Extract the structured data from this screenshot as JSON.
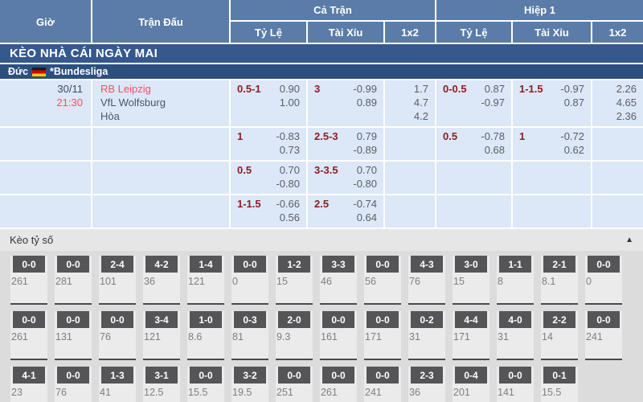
{
  "header": {
    "col_time": "Giờ",
    "col_match": "Trận Đấu",
    "group_full": "Cả Trận",
    "group_half": "Hiệp 1",
    "sub_odds": "Tỷ Lệ",
    "sub_ou": "Tài Xỉu",
    "sub_1x2": "1x2"
  },
  "section_title": "KÈO NHÀ CÁI NGÀY MAI",
  "league": {
    "country": "Đức",
    "name": "*Bundesliga",
    "flag": "germany-flag"
  },
  "odds_rows": [
    {
      "date": "30/11",
      "time": "21:30",
      "teams": [
        "RB Leipzig",
        "VfL Wolfsburg",
        "Hòa"
      ],
      "cells": [
        {
          "line": "0.5-1",
          "odds": [
            "0.90",
            "1.00"
          ]
        },
        {
          "line": "3",
          "odds": [
            "-0.99",
            "0.89"
          ]
        },
        {
          "x12": [
            "1.7",
            "4.7",
            "4.2"
          ]
        },
        {
          "line": "0-0.5",
          "odds": [
            "0.87",
            "-0.97"
          ]
        },
        {
          "line": "1-1.5",
          "odds": [
            "-0.97",
            "0.87"
          ]
        },
        {
          "x12": [
            "2.26",
            "4.65",
            "2.36"
          ]
        }
      ]
    },
    {
      "cells": [
        {
          "line": "1",
          "odds": [
            "-0.83",
            "0.73"
          ]
        },
        {
          "line": "2.5-3",
          "odds": [
            "0.79",
            "-0.89"
          ]
        },
        null,
        {
          "line": "0.5",
          "odds": [
            "-0.78",
            "0.68"
          ]
        },
        {
          "line": "1",
          "odds": [
            "-0.72",
            "0.62"
          ]
        },
        null
      ]
    },
    {
      "cells": [
        {
          "line": "0.5",
          "odds": [
            "0.70",
            "-0.80"
          ]
        },
        {
          "line": "3-3.5",
          "odds": [
            "0.70",
            "-0.80"
          ]
        },
        null,
        null,
        null,
        null
      ]
    },
    {
      "cells": [
        {
          "line": "1-1.5",
          "odds": [
            "-0.66",
            "0.56"
          ]
        },
        {
          "line": "2.5",
          "odds": [
            "-0.74",
            "0.64"
          ]
        },
        null,
        null,
        null,
        null
      ]
    }
  ],
  "score_section": {
    "title": "Kèo tỷ số",
    "collapse_icon": "▲",
    "rows": [
      [
        {
          "score": "0-0",
          "value": "261"
        },
        {
          "score": "0-0",
          "value": "281"
        },
        {
          "score": "2-4",
          "value": "101"
        },
        {
          "score": "4-2",
          "value": "36"
        },
        {
          "score": "1-4",
          "value": "121"
        },
        {
          "score": "0-0",
          "value": "0"
        },
        {
          "score": "1-2",
          "value": "15"
        },
        {
          "score": "3-3",
          "value": "46"
        },
        {
          "score": "0-0",
          "value": "56"
        },
        {
          "score": "4-3",
          "value": "76"
        },
        {
          "score": "3-0",
          "value": "15"
        },
        {
          "score": "1-1",
          "value": "8"
        },
        {
          "score": "2-1",
          "value": "8.1"
        },
        {
          "score": "0-0",
          "value": "0"
        }
      ],
      [
        {
          "score": "0-0",
          "value": "261"
        },
        {
          "score": "0-0",
          "value": "131"
        },
        {
          "score": "0-0",
          "value": "76"
        },
        {
          "score": "3-4",
          "value": "121"
        },
        {
          "score": "1-0",
          "value": "8.6"
        },
        {
          "score": "0-3",
          "value": "81"
        },
        {
          "score": "2-0",
          "value": "9.3"
        },
        {
          "score": "0-0",
          "value": "161"
        },
        {
          "score": "0-0",
          "value": "171"
        },
        {
          "score": "0-2",
          "value": "31"
        },
        {
          "score": "4-4",
          "value": "171"
        },
        {
          "score": "4-0",
          "value": "31"
        },
        {
          "score": "2-2",
          "value": "14"
        },
        {
          "score": "0-0",
          "value": "241"
        }
      ],
      [
        {
          "score": "4-1",
          "value": "23"
        },
        {
          "score": "0-0",
          "value": "76"
        },
        {
          "score": "1-3",
          "value": "41"
        },
        {
          "score": "3-1",
          "value": "12.5"
        },
        {
          "score": "0-0",
          "value": "15.5"
        },
        {
          "score": "3-2",
          "value": "19.5"
        },
        {
          "score": "0-0",
          "value": "251"
        },
        {
          "score": "0-0",
          "value": "261"
        },
        {
          "score": "0-0",
          "value": "241"
        },
        {
          "score": "2-3",
          "value": "36"
        },
        {
          "score": "0-4",
          "value": "201"
        },
        {
          "score": "0-0",
          "value": "141"
        },
        {
          "score": "0-1",
          "value": "15.5"
        }
      ]
    ]
  },
  "colors": {
    "header_blue": "#5b7ca8",
    "banner_navy": "#35598f",
    "league_navy": "#2c4f7e",
    "handicap_maroon": "#8e1e22",
    "accent_red": "#ee5365",
    "row_light_blue": "#dce7f7",
    "score_box_gray": "#555558"
  }
}
